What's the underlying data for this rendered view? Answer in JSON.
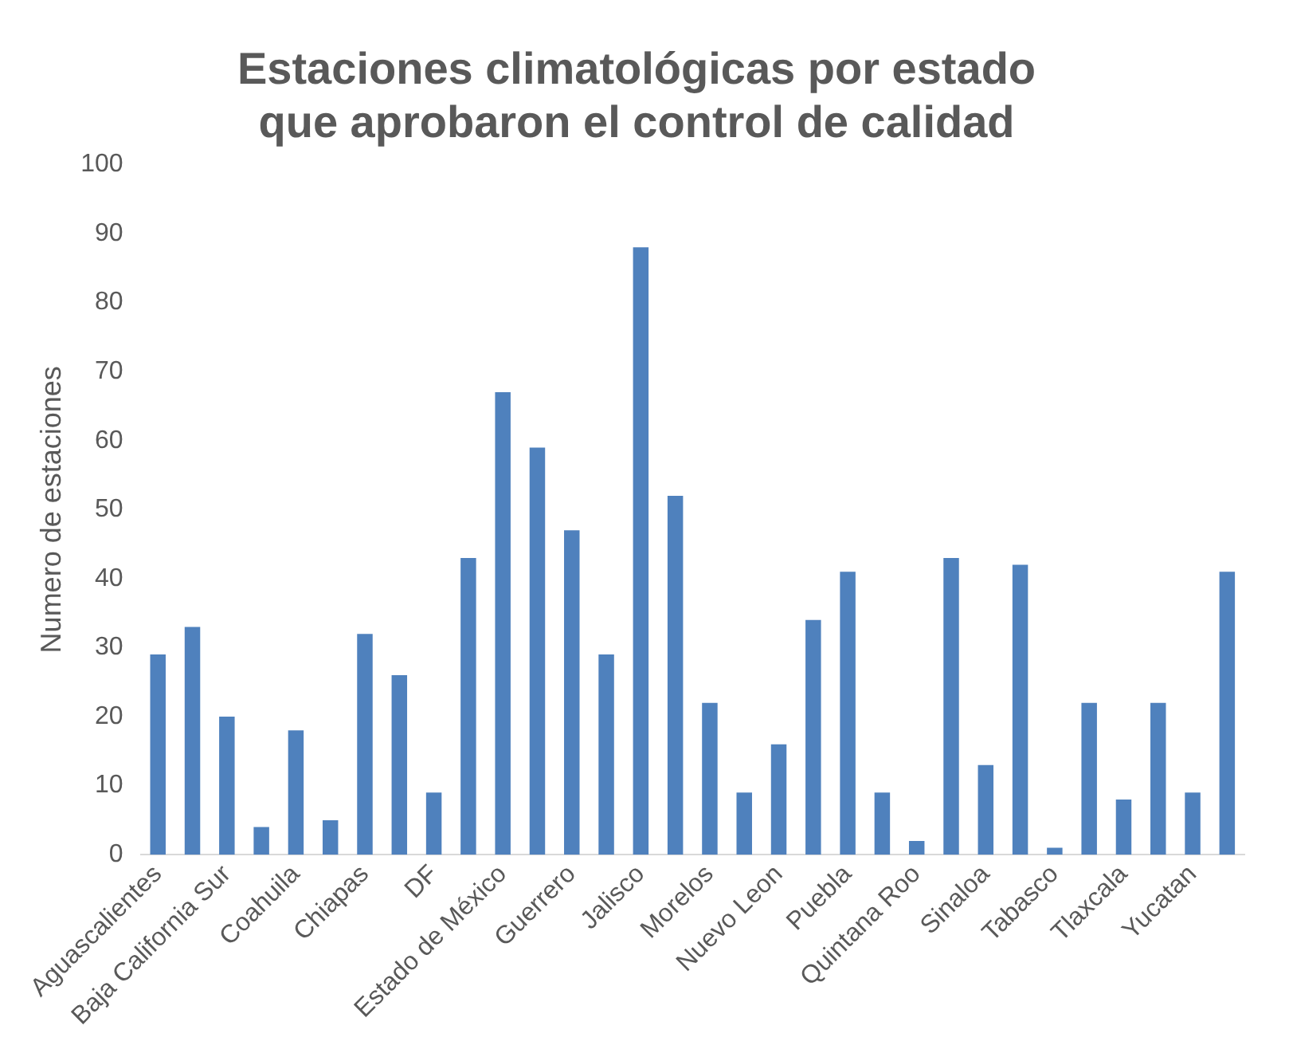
{
  "chart_data": {
    "type": "bar",
    "title": "Estaciones climatológicas por estado que aprobaron el control de calidad",
    "ylabel": "Numero de estaciones",
    "categories": [
      "Aguascalientes",
      null,
      "Baja California Sur",
      null,
      "Coahuila",
      null,
      "Chiapas",
      null,
      "DF",
      null,
      "Estado de México",
      null,
      "Guerrero",
      null,
      "Jalisco",
      null,
      "Morelos",
      null,
      "Nuevo Leon",
      null,
      "Puebla",
      null,
      "Quintana Roo",
      null,
      "Sinaloa",
      null,
      "Tabasco",
      null,
      "Tlaxcala",
      null,
      "Yucatan",
      null
    ],
    "values": [
      29,
      33,
      20,
      4,
      18,
      5,
      32,
      26,
      9,
      43,
      67,
      59,
      47,
      29,
      88,
      52,
      22,
      9,
      16,
      34,
      41,
      9,
      2,
      43,
      13,
      42,
      1,
      22,
      8,
      22,
      9,
      41
    ],
    "color": "#4f81bd",
    "ylim": [
      0,
      100
    ],
    "yticks": [
      0,
      10,
      20,
      30,
      40,
      50,
      60,
      70,
      80,
      90,
      100
    ],
    "grid": false
  }
}
